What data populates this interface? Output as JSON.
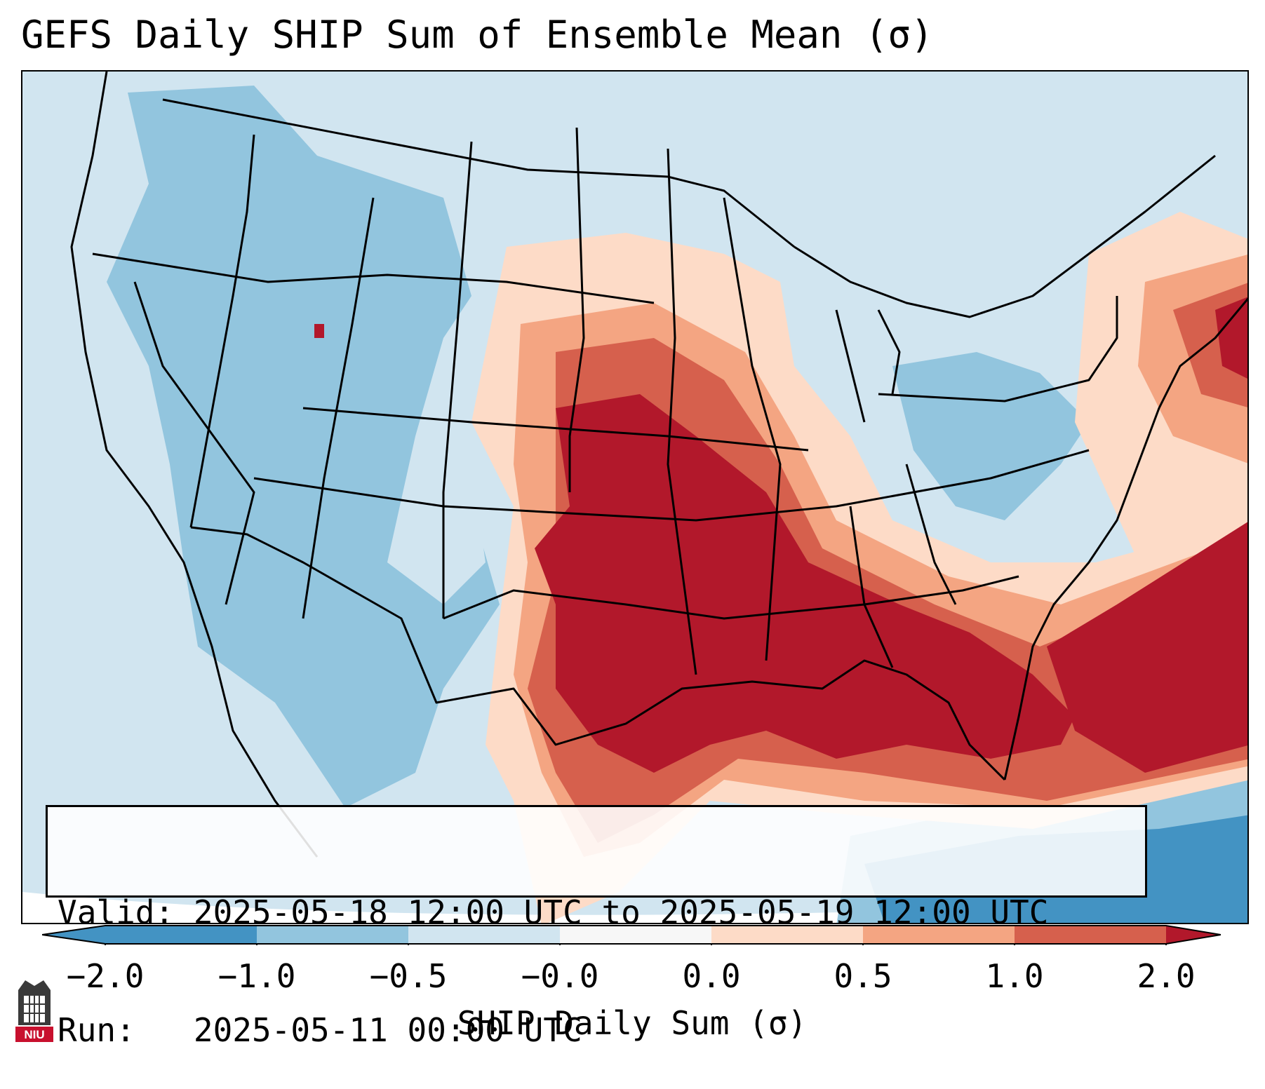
{
  "title": "GEFS Daily SHIP Sum of Ensemble Mean (σ)",
  "info": {
    "valid_label": "Valid:",
    "valid_value": "2025-05-18 12:00 UTC to 2025-05-19 12:00 UTC",
    "run_label": "Run:",
    "run_value": "2025-05-11 00:00 UTC"
  },
  "colorbar": {
    "label": "SHIP Daily Sum (σ)",
    "ticks": [
      "−2.0",
      "−1.0",
      "−0.5",
      "−0.0",
      "0.0",
      "0.5",
      "1.0",
      "2.0"
    ],
    "colors": [
      "#4393c3",
      "#92c5de",
      "#d1e5f0",
      "#f7f7f7",
      "#fddbc7",
      "#f4a582",
      "#d6604d",
      "#b2182b"
    ],
    "extend": "both"
  },
  "map": {
    "region": "Contiguous United States",
    "projection": "Lambert conformal",
    "colors": {
      "very_low": "#4393c3",
      "low": "#92c5de",
      "near_neg": "#d1e5f0",
      "near_zero": "#f7f7f7",
      "near_pos": "#fddbc7",
      "mod": "#f4a582",
      "high": "#d6604d",
      "very_high": "#b2182b"
    }
  },
  "logo_text": "NIU"
}
